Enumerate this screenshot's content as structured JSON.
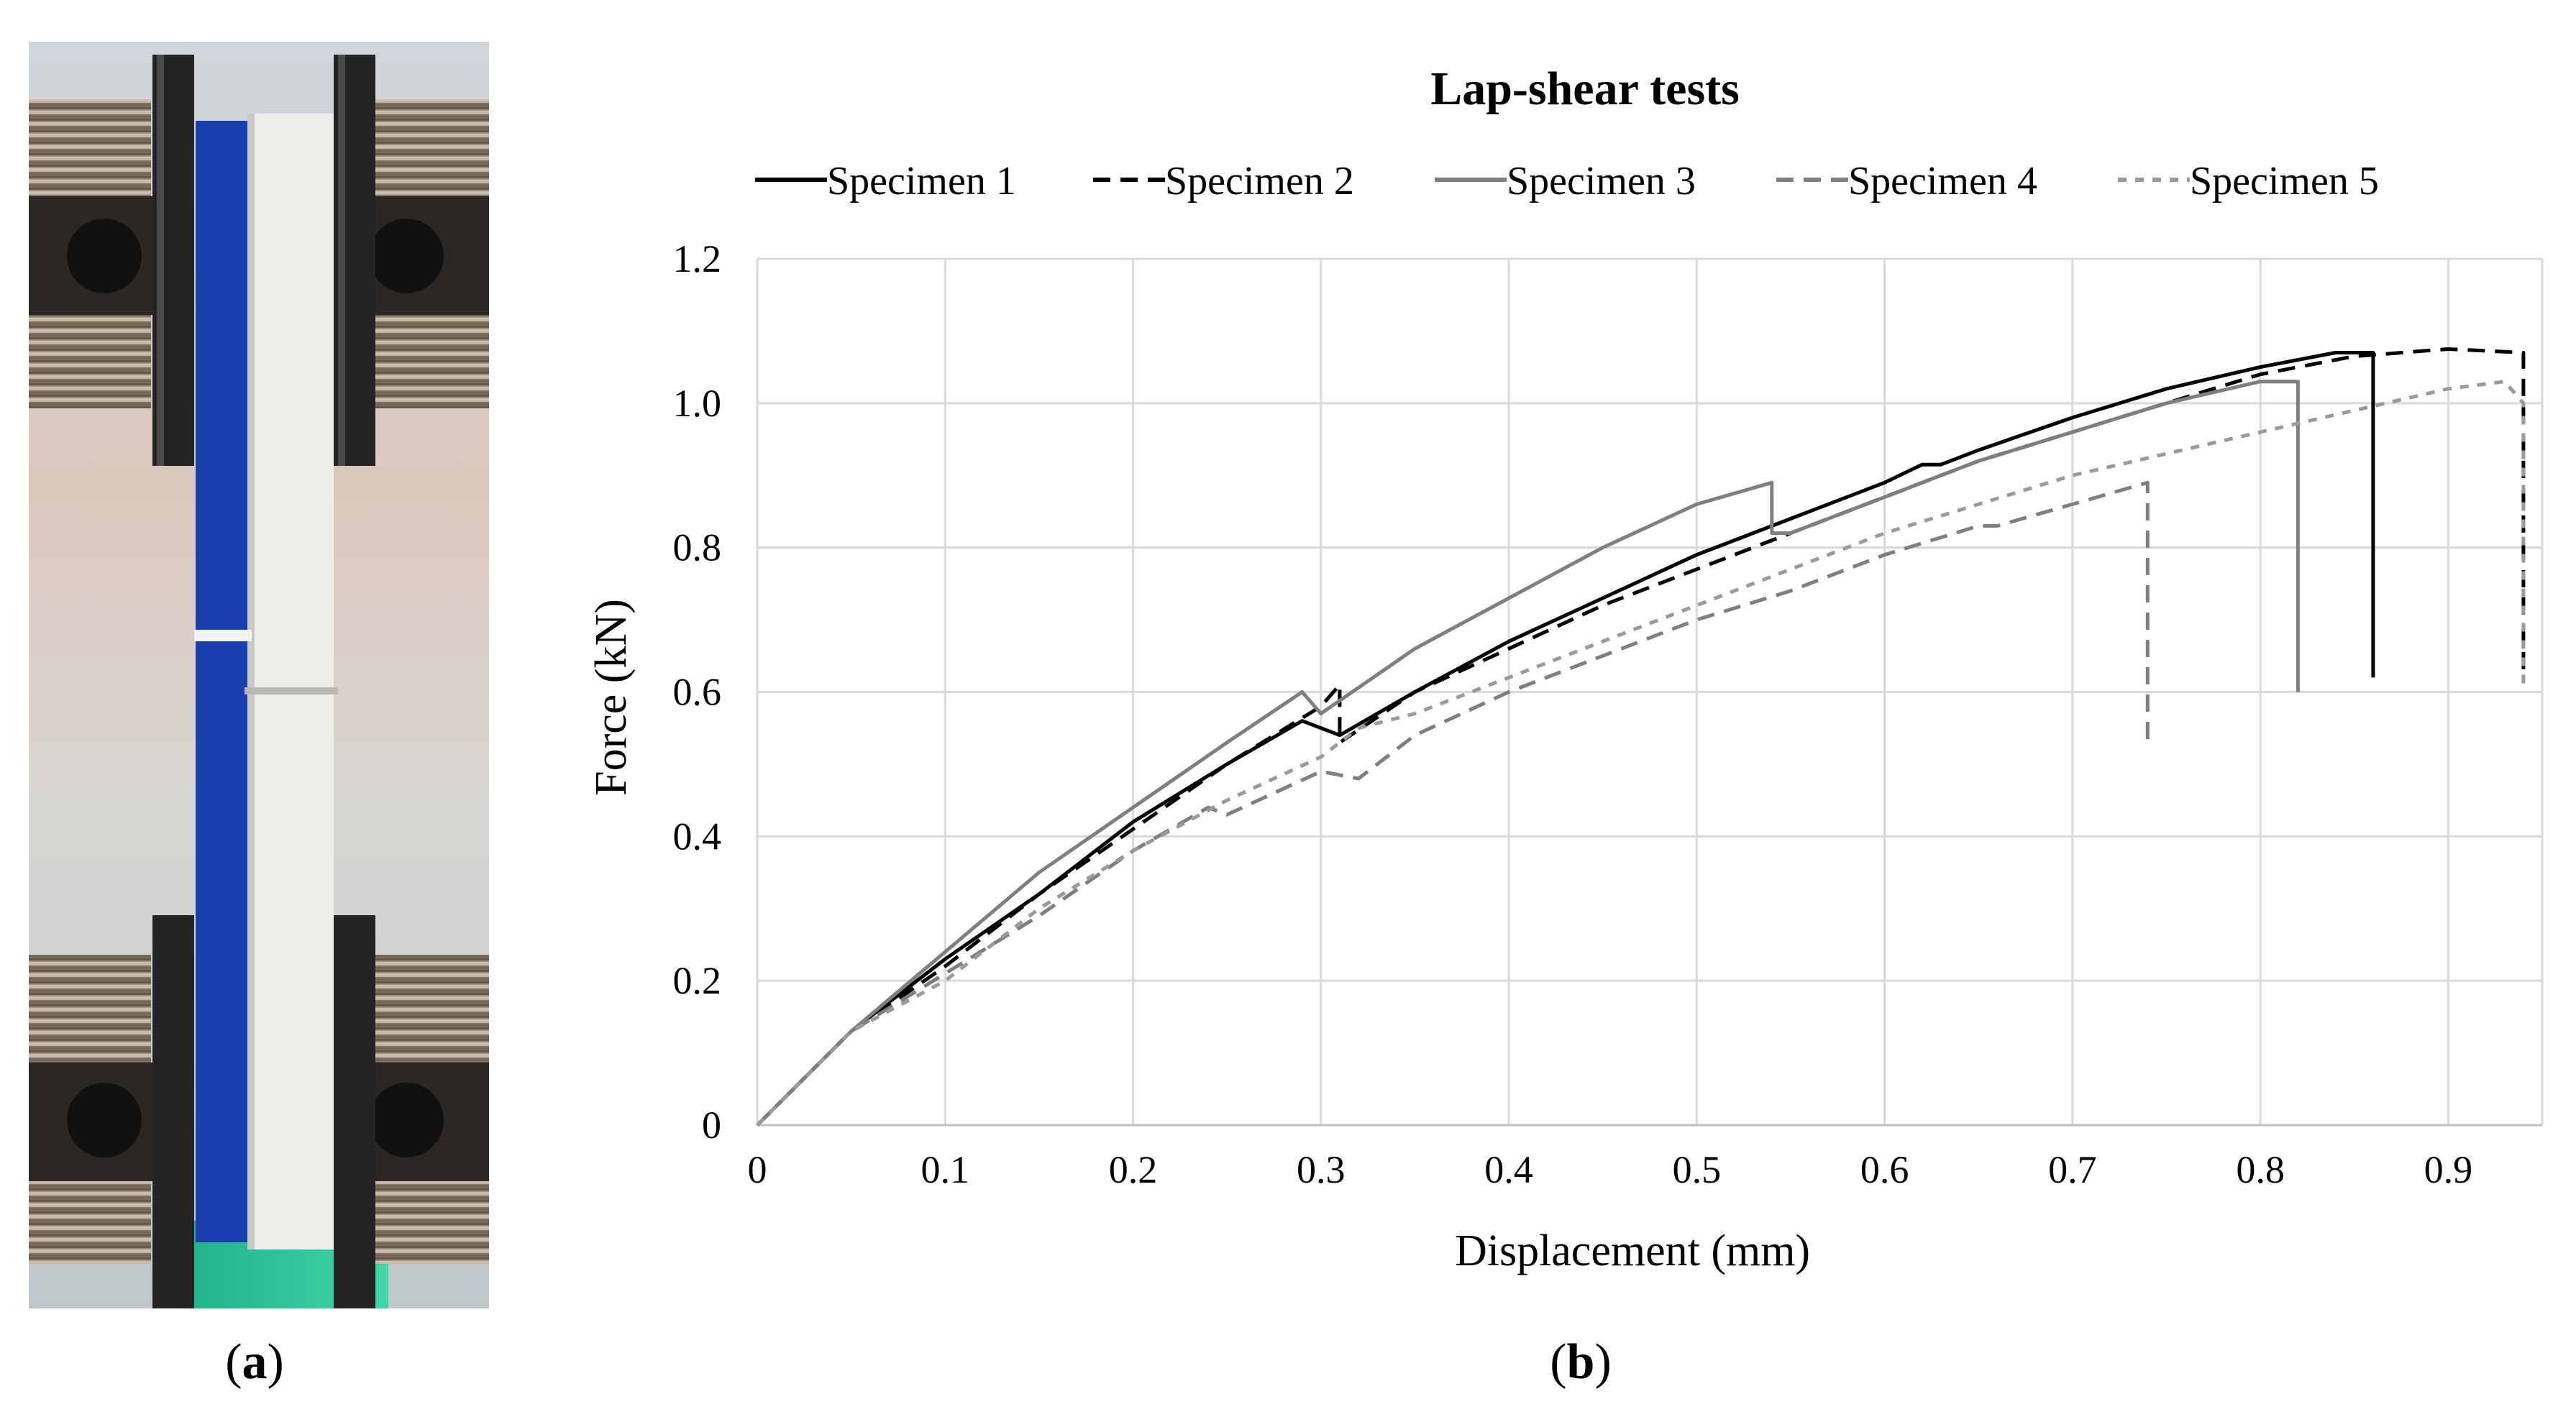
{
  "panel_labels": {
    "a": "a",
    "b": "b"
  },
  "photo": {
    "description_icon": "lap-shear-specimen-photo-icon",
    "colors": {
      "adherend_blue": "#1a3fae",
      "adherend_white": "#eeeeee",
      "grip": "#2a2a2a",
      "bolt": "#8a7a66"
    }
  },
  "chart_data": {
    "type": "line",
    "title": "Lap-shear tests",
    "xlabel": "Displacement (mm)",
    "ylabel": "Force (kN)",
    "xlim": [
      0,
      0.95
    ],
    "ylim": [
      0,
      1.2
    ],
    "xticks": [
      0,
      0.1,
      0.2,
      0.3,
      0.4,
      0.5,
      0.6,
      0.7,
      0.8,
      0.9
    ],
    "xtick_labels": [
      "0",
      "0.1",
      "0.2",
      "0.3",
      "0.4",
      "0.5",
      "0.6",
      "0.7",
      "0.8",
      "0.9"
    ],
    "yticks": [
      0,
      0.2,
      0.4,
      0.6,
      0.8,
      1.0,
      1.2
    ],
    "ytick_labels": [
      "0",
      "0.2",
      "0.4",
      "0.6",
      "0.8",
      "1.0",
      "1.2"
    ],
    "grid": true,
    "legend_position": "top",
    "series": [
      {
        "name": "Specimen 1",
        "color": "#000000",
        "dash": "solid",
        "x": [
          0,
          0.05,
          0.1,
          0.15,
          0.2,
          0.25,
          0.29,
          0.3,
          0.31,
          0.35,
          0.4,
          0.45,
          0.5,
          0.55,
          0.6,
          0.62,
          0.63,
          0.65,
          0.7,
          0.75,
          0.8,
          0.84,
          0.86,
          0.86
        ],
        "y": [
          0,
          0.13,
          0.23,
          0.32,
          0.42,
          0.5,
          0.56,
          0.55,
          0.54,
          0.6,
          0.67,
          0.73,
          0.79,
          0.84,
          0.89,
          0.915,
          0.915,
          0.935,
          0.98,
          1.02,
          1.05,
          1.07,
          1.07,
          0.62
        ]
      },
      {
        "name": "Specimen 2",
        "color": "#000000",
        "dash": "long",
        "x": [
          0,
          0.05,
          0.1,
          0.15,
          0.2,
          0.25,
          0.3,
          0.31,
          0.31,
          0.35,
          0.4,
          0.45,
          0.5,
          0.55,
          0.6,
          0.65,
          0.7,
          0.75,
          0.8,
          0.85,
          0.9,
          0.94,
          0.94
        ],
        "y": [
          0,
          0.13,
          0.22,
          0.32,
          0.41,
          0.5,
          0.58,
          0.61,
          0.53,
          0.6,
          0.66,
          0.72,
          0.77,
          0.82,
          0.87,
          0.92,
          0.96,
          1.0,
          1.04,
          1.065,
          1.075,
          1.07,
          0.62
        ]
      },
      {
        "name": "Specimen 3",
        "color": "#7f7f7f",
        "dash": "solid",
        "x": [
          0,
          0.05,
          0.1,
          0.15,
          0.2,
          0.25,
          0.29,
          0.3,
          0.35,
          0.4,
          0.45,
          0.5,
          0.54,
          0.54,
          0.55,
          0.6,
          0.65,
          0.7,
          0.75,
          0.8,
          0.82,
          0.82
        ],
        "y": [
          0,
          0.13,
          0.24,
          0.35,
          0.44,
          0.53,
          0.6,
          0.57,
          0.66,
          0.73,
          0.8,
          0.86,
          0.89,
          0.82,
          0.82,
          0.87,
          0.92,
          0.96,
          1.0,
          1.03,
          1.03,
          0.6
        ]
      },
      {
        "name": "Specimen 4",
        "color": "#7f7f7f",
        "dash": "long",
        "x": [
          0,
          0.05,
          0.1,
          0.15,
          0.2,
          0.24,
          0.25,
          0.3,
          0.32,
          0.35,
          0.4,
          0.45,
          0.5,
          0.55,
          0.6,
          0.65,
          0.66,
          0.7,
          0.74,
          0.74
        ],
        "y": [
          0,
          0.13,
          0.21,
          0.29,
          0.38,
          0.44,
          0.43,
          0.49,
          0.48,
          0.54,
          0.6,
          0.65,
          0.7,
          0.74,
          0.79,
          0.83,
          0.83,
          0.86,
          0.89,
          0.53
        ]
      },
      {
        "name": "Specimen 5",
        "color": "#9a9a9a",
        "dash": "short",
        "x": [
          0,
          0.05,
          0.1,
          0.15,
          0.2,
          0.25,
          0.3,
          0.32,
          0.35,
          0.4,
          0.45,
          0.5,
          0.55,
          0.6,
          0.65,
          0.7,
          0.75,
          0.8,
          0.85,
          0.9,
          0.93,
          0.94,
          0.94
        ],
        "y": [
          0,
          0.13,
          0.2,
          0.3,
          0.38,
          0.45,
          0.51,
          0.55,
          0.57,
          0.62,
          0.67,
          0.72,
          0.77,
          0.82,
          0.86,
          0.9,
          0.93,
          0.96,
          0.99,
          1.02,
          1.03,
          1.0,
          0.61
        ]
      }
    ]
  }
}
